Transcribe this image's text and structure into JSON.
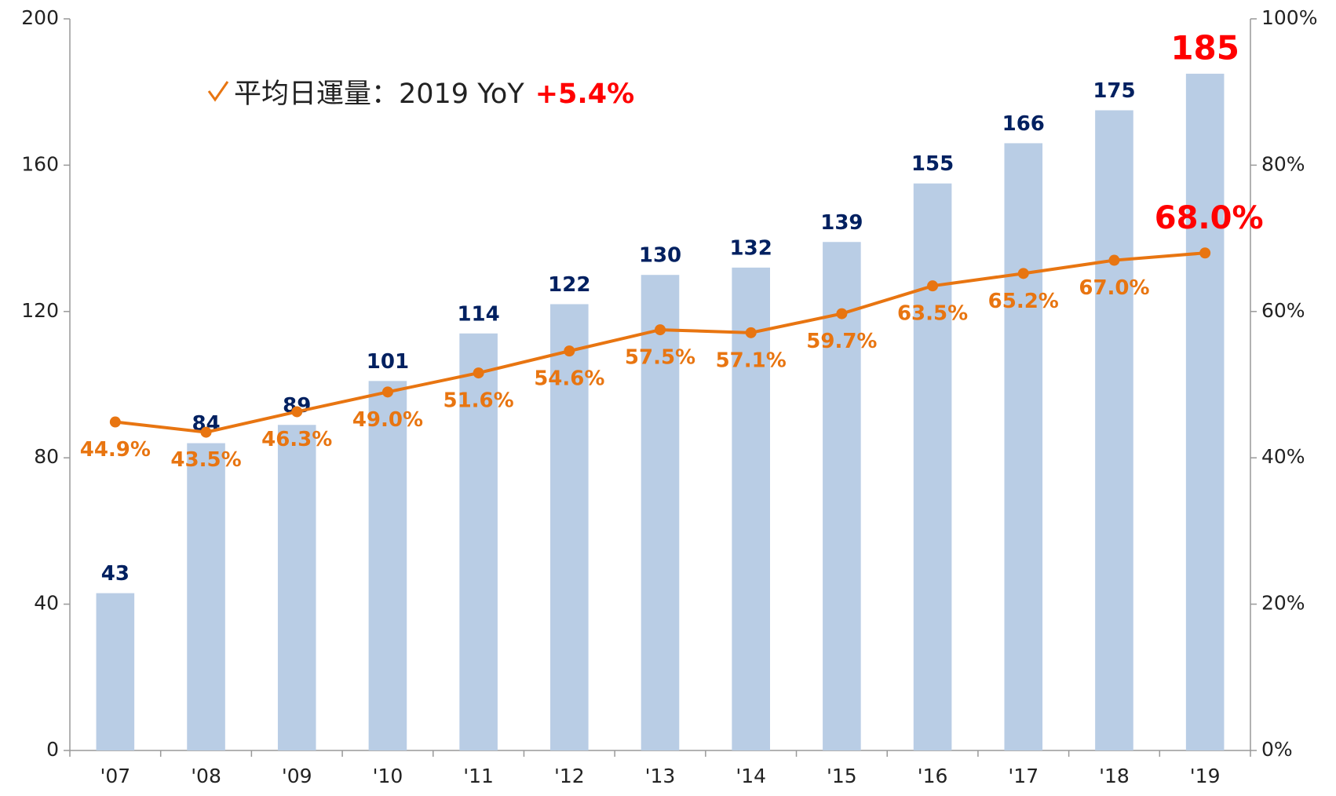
{
  "chart_data": {
    "type": "bar",
    "annotation": {
      "text": "平均日運量：2019 YoY",
      "highlight": "+5.4%"
    },
    "categories": [
      "'07",
      "'08",
      "'09",
      "'10",
      "'11",
      "'12",
      "'13",
      "'14",
      "'15",
      "'16",
      "'17",
      "'18",
      "'19"
    ],
    "series": [
      {
        "type": "bar",
        "color": "#b9cde5",
        "label_color": "#002060",
        "values": [
          43,
          84,
          89,
          101,
          114,
          122,
          130,
          132,
          139,
          155,
          166,
          175,
          185
        ]
      },
      {
        "type": "line",
        "axis": "y2",
        "color": "#e87511",
        "values": [
          44.9,
          43.5,
          46.3,
          49.0,
          51.6,
          54.6,
          57.5,
          57.1,
          59.7,
          63.5,
          65.2,
          67.0,
          68.0
        ],
        "value_labels": [
          "44.9%",
          "43.5%",
          "46.3%",
          "49.0%",
          "51.6%",
          "54.6%",
          "57.5%",
          "57.1%",
          "59.7%",
          "63.5%",
          "65.2%",
          "67.0%",
          "68.0%"
        ]
      }
    ],
    "highlight_color": "#ff0000",
    "ylim": [
      0,
      200
    ],
    "yticks": [
      0,
      40,
      80,
      120,
      160,
      200
    ],
    "y2lim": [
      0,
      100
    ],
    "y2ticks": [
      {
        "value": 0,
        "label": "0%"
      },
      {
        "value": 20,
        "label": "20%"
      },
      {
        "value": 40,
        "label": "40%"
      },
      {
        "value": 60,
        "label": "60%"
      },
      {
        "value": 80,
        "label": "80%"
      },
      {
        "value": 100,
        "label": "100%"
      }
    ]
  }
}
